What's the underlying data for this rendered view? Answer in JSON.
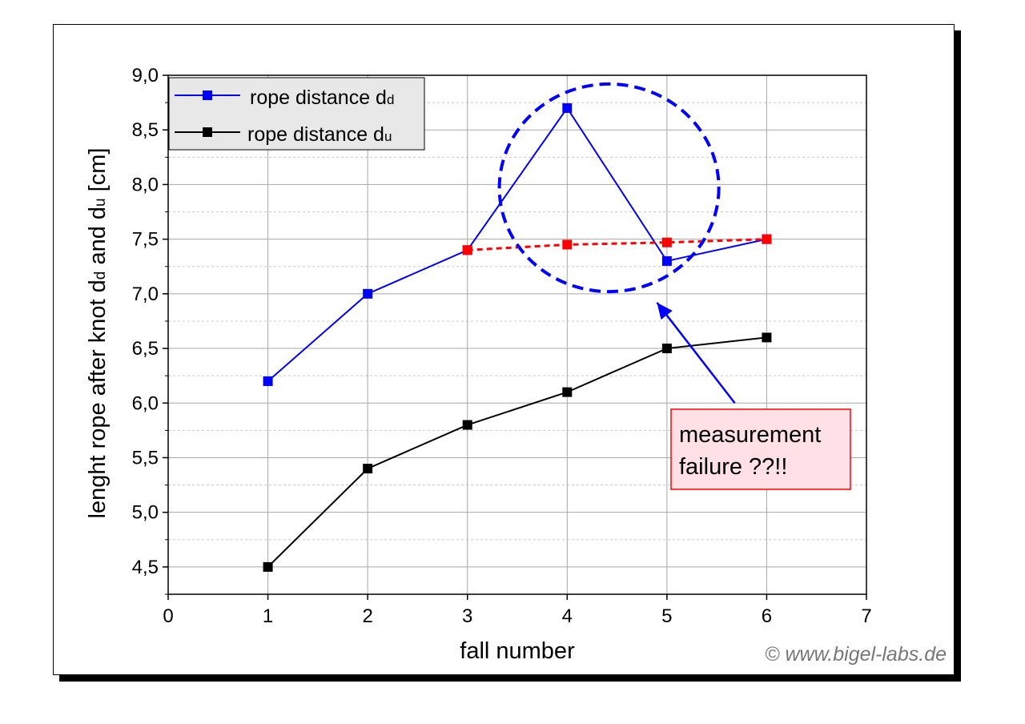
{
  "chart_data": {
    "type": "line",
    "xlabel": "fall number",
    "ylabel": "lenght rope after knot dd and du [cm]",
    "ylabel_parts": [
      "lenght rope after knot d",
      "d",
      " and d",
      "u",
      " [cm]"
    ],
    "xlim": [
      0,
      7
    ],
    "ylim": [
      4.25,
      9.0
    ],
    "x_ticks": [
      "0",
      "1",
      "2",
      "3",
      "4",
      "5",
      "6",
      "7"
    ],
    "y_ticks": [
      "4,5",
      "5,0",
      "5,5",
      "6,0",
      "6,5",
      "7,0",
      "7,5",
      "8,0",
      "8,5",
      "9,0"
    ],
    "y_tick_values": [
      4.5,
      5.0,
      5.5,
      6.0,
      6.5,
      7.0,
      7.5,
      8.0,
      8.5,
      9.0
    ],
    "grid": true,
    "legend_position": "top-left",
    "series": [
      {
        "name": "rope distance dd",
        "legend_main": "rope distance d",
        "legend_sub": "d",
        "color": "#0000ff",
        "x": [
          1,
          2,
          3,
          4,
          5,
          6
        ],
        "values": [
          6.2,
          7.0,
          7.4,
          8.7,
          7.3,
          7.5
        ]
      },
      {
        "name": "rope distance du",
        "legend_main": "rope distance d",
        "legend_sub": "u",
        "color": "#000000",
        "x": [
          1,
          2,
          3,
          4,
          5,
          6
        ],
        "values": [
          4.5,
          5.4,
          5.8,
          6.1,
          6.5,
          6.6
        ]
      }
    ],
    "correction_line": {
      "color": "#ff0000",
      "x": [
        3,
        4,
        5,
        6
      ],
      "values": [
        7.4,
        7.45,
        7.47,
        7.5
      ]
    },
    "highlight_circle": {
      "color": "#0000ff",
      "cx": 4.42,
      "cy": 7.97,
      "rx": 1.1,
      "ry": 0.95
    },
    "annotation": {
      "lines": [
        "measurement",
        "failure ??!!"
      ],
      "border": "#ff0000",
      "fill": "#ffe0e6",
      "arrow_color": "#0000ff",
      "arrow_from": [
        5.68,
        6.0
      ],
      "arrow_to": [
        4.9,
        6.92
      ]
    }
  },
  "copyright": "© www.bigel-labs.de"
}
